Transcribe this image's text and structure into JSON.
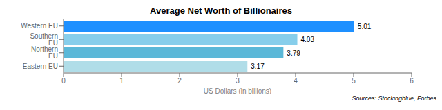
{
  "chart_data": {
    "type": "bar",
    "orientation": "horizontal",
    "title": "Average Net Worth of Billionaires",
    "categories": [
      "Western EU",
      "Southern EU",
      "Northern EU",
      "Eastern EU"
    ],
    "values": [
      5.01,
      4.03,
      3.79,
      3.17
    ],
    "colors": [
      "#1e90ff",
      "#87ceeb",
      "#5bb8d8",
      "#b0dde8"
    ],
    "xlabel": "US Dollars (in billions)",
    "xlim": [
      0,
      6
    ],
    "xticks": [
      0,
      1,
      2,
      3,
      4,
      5,
      6
    ],
    "data_labels": true,
    "grid": false,
    "annotations": [
      "Sources: Stockingblue, Forbes"
    ]
  }
}
